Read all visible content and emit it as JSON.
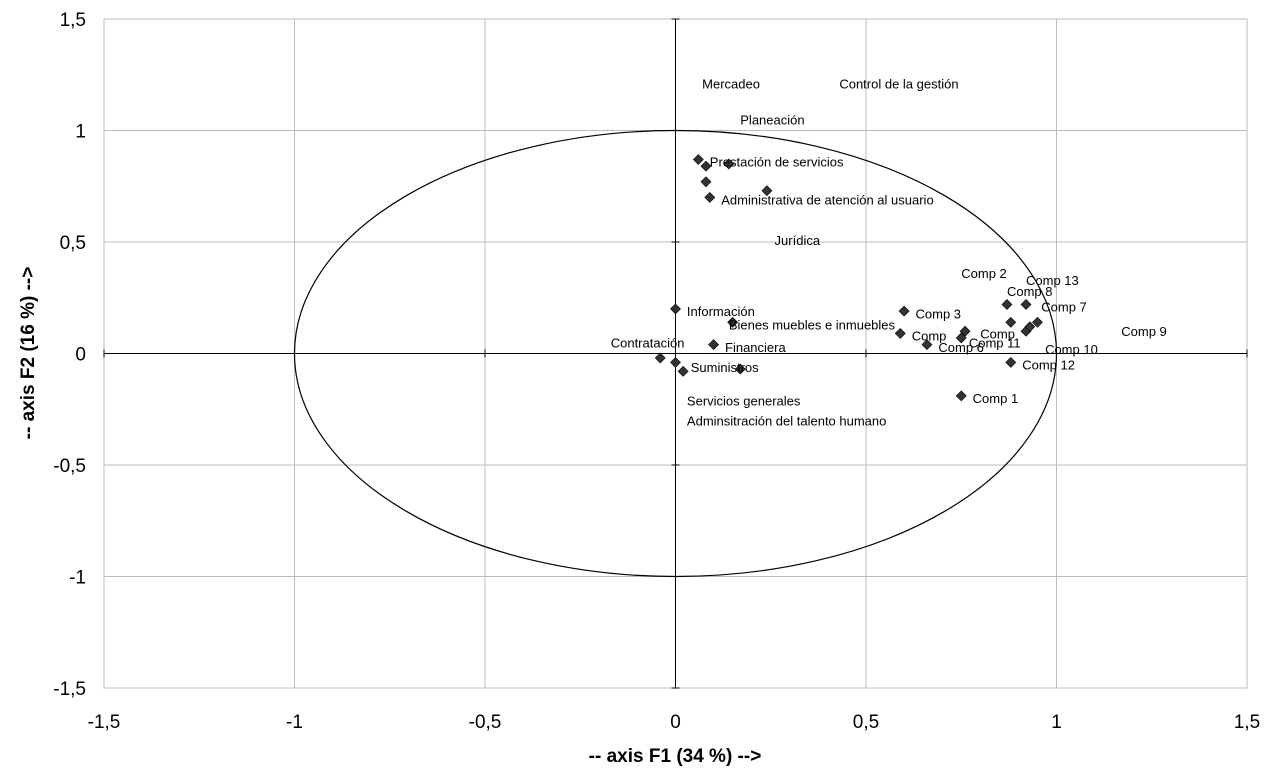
{
  "chart_data": {
    "type": "scatter",
    "title": "",
    "xlabel": "-- axis F1 (34 %) -->",
    "ylabel": "-- axis F2 (16 %) -->",
    "xlim": [
      -1.5,
      1.5
    ],
    "ylim": [
      -1.5,
      1.5
    ],
    "x_ticks": [
      "-1,5",
      "-1",
      "-0,5",
      "0",
      "0,5",
      "1",
      "1,5"
    ],
    "y_ticks": [
      "1,5",
      "1",
      "0,5",
      "0",
      "-0,5",
      "-1",
      "-1,5"
    ],
    "grid": true,
    "unit_circle": true,
    "marker": "diamond",
    "marker_color": "#333333",
    "points": [
      {
        "x": 0.06,
        "y": 0.87
      },
      {
        "x": 0.08,
        "y": 0.84
      },
      {
        "x": 0.14,
        "y": 0.85
      },
      {
        "x": 0.08,
        "y": 0.77
      },
      {
        "x": 0.09,
        "y": 0.7
      },
      {
        "x": 0.24,
        "y": 0.73
      },
      {
        "x": 0.0,
        "y": 0.2
      },
      {
        "x": 0.15,
        "y": 0.14
      },
      {
        "x": 0.1,
        "y": 0.04
      },
      {
        "x": -0.04,
        "y": -0.02
      },
      {
        "x": 0.0,
        "y": -0.04
      },
      {
        "x": 0.02,
        "y": -0.08
      },
      {
        "x": 0.17,
        "y": -0.07
      },
      {
        "x": 0.6,
        "y": 0.19
      },
      {
        "x": 0.59,
        "y": 0.09
      },
      {
        "x": 0.66,
        "y": 0.04
      },
      {
        "x": 0.76,
        "y": 0.1
      },
      {
        "x": 0.75,
        "y": 0.07
      },
      {
        "x": 0.87,
        "y": 0.22
      },
      {
        "x": 0.92,
        "y": 0.22
      },
      {
        "x": 0.88,
        "y": 0.14
      },
      {
        "x": 0.92,
        "y": 0.1
      },
      {
        "x": 0.93,
        "y": 0.12
      },
      {
        "x": 0.95,
        "y": 0.14
      },
      {
        "x": 0.88,
        "y": -0.04
      },
      {
        "x": 0.75,
        "y": -0.19
      }
    ],
    "labels": [
      {
        "text": "Mercadeo",
        "x": 0.07,
        "y": 1.21
      },
      {
        "text": "Control de la gestión",
        "x": 0.43,
        "y": 1.21
      },
      {
        "text": "Planeación",
        "x": 0.17,
        "y": 1.05
      },
      {
        "text": "Prestación de servicios",
        "x": 0.09,
        "y": 0.86
      },
      {
        "text": "Administrativa de atención al usuario",
        "x": 0.12,
        "y": 0.69
      },
      {
        "text": "Jurídica",
        "x": 0.26,
        "y": 0.51
      },
      {
        "text": "Información",
        "x": 0.03,
        "y": 0.19
      },
      {
        "text": "Bienes muebles e inmuebles",
        "x": 0.14,
        "y": 0.13
      },
      {
        "text": "Contratación",
        "x": -0.17,
        "y": 0.05
      },
      {
        "text": "Financiera",
        "x": 0.13,
        "y": 0.03
      },
      {
        "text": "Suministros",
        "x": 0.04,
        "y": -0.06
      },
      {
        "text": "Servicios generales",
        "x": 0.03,
        "y": -0.21
      },
      {
        "text": "Adminsitración del talento humano",
        "x": 0.03,
        "y": -0.3
      },
      {
        "text": "Comp 2",
        "x": 0.75,
        "y": 0.36
      },
      {
        "text": "Comp 13",
        "x": 0.92,
        "y": 0.33
      },
      {
        "text": "Comp 8",
        "x": 0.87,
        "y": 0.28
      },
      {
        "text": "Comp 7",
        "x": 0.96,
        "y": 0.21
      },
      {
        "text": "Comp 3",
        "x": 0.63,
        "y": 0.18
      },
      {
        "text": "Comp 9",
        "x": 1.17,
        "y": 0.1
      },
      {
        "text": "Comp",
        "x": 0.62,
        "y": 0.08
      },
      {
        "text": "Comp",
        "x": 0.8,
        "y": 0.09
      },
      {
        "text": "Comp 11",
        "x": 0.77,
        "y": 0.05
      },
      {
        "text": "Comp 6",
        "x": 0.69,
        "y": 0.03
      },
      {
        "text": "Comp 10",
        "x": 0.97,
        "y": 0.02
      },
      {
        "text": "Comp 12",
        "x": 0.91,
        "y": -0.05
      },
      {
        "text": "Comp 1",
        "x": 0.78,
        "y": -0.2
      }
    ]
  }
}
